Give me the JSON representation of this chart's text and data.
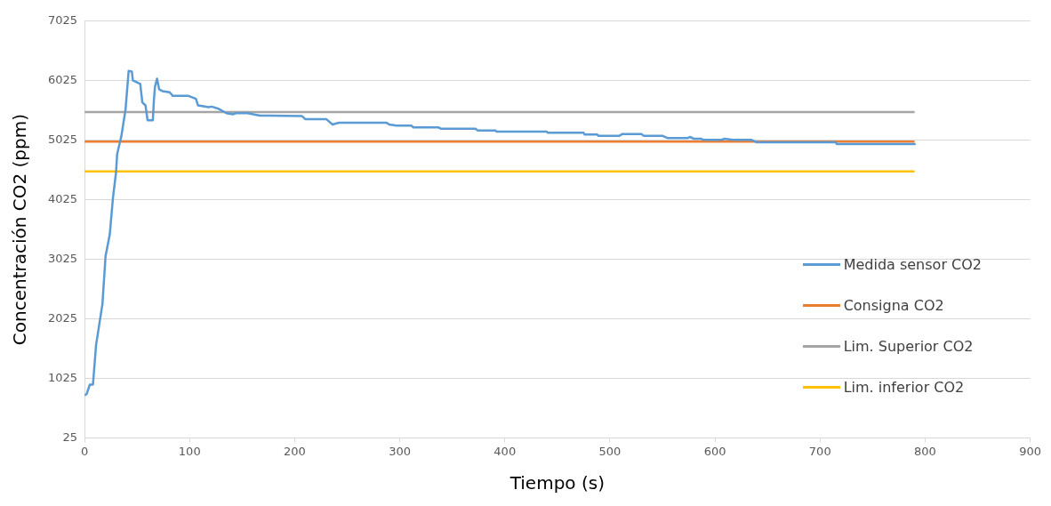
{
  "chart_data": {
    "type": "line",
    "xlabel": "Tiempo (s)",
    "ylabel": "Concentración CO2 (ppm)",
    "xlim": [
      0,
      900
    ],
    "xticks": [
      0,
      100,
      200,
      300,
      400,
      500,
      600,
      700,
      800,
      900
    ],
    "ylim": [
      25,
      7025
    ],
    "yticks": [
      25,
      1025,
      2025,
      3025,
      4025,
      5025,
      6025,
      7025
    ],
    "grid": "y",
    "legend": "right",
    "marker": "none",
    "line_style": "solid",
    "series": [
      {
        "name": "Medida sensor CO2",
        "color": "#5b9bd5",
        "x": [
          0,
          2,
          5,
          8,
          11,
          14,
          17,
          20,
          24,
          27,
          30,
          31,
          35,
          39,
          42,
          45,
          46,
          53,
          55,
          58,
          60,
          65,
          66,
          67,
          69,
          71,
          74,
          81,
          84,
          99,
          106,
          108,
          118,
          121,
          128,
          135,
          141,
          144,
          155,
          167,
          175,
          207,
          210,
          230,
          236,
          242,
          287,
          290,
          297,
          311,
          313,
          337,
          339,
          372,
          374,
          391,
          392,
          440,
          441,
          475,
          476,
          488,
          489,
          509,
          512,
          530,
          532,
          550,
          555,
          574,
          576,
          580,
          587,
          589,
          606,
          609,
          617,
          635,
          640,
          715,
          716,
          791
        ],
        "values": [
          740,
          760,
          920,
          920,
          1590,
          1930,
          2270,
          3080,
          3440,
          4050,
          4490,
          4790,
          5090,
          5540,
          6190,
          6180,
          6030,
          5970,
          5660,
          5610,
          5360,
          5360,
          5690,
          5920,
          6060,
          5880,
          5850,
          5830,
          5770,
          5770,
          5720,
          5610,
          5580,
          5590,
          5550,
          5480,
          5460,
          5480,
          5480,
          5440,
          5440,
          5430,
          5380,
          5380,
          5290,
          5320,
          5320,
          5290,
          5270,
          5270,
          5240,
          5240,
          5220,
          5220,
          5190,
          5190,
          5170,
          5170,
          5150,
          5150,
          5120,
          5120,
          5100,
          5100,
          5130,
          5130,
          5100,
          5100,
          5060,
          5060,
          5080,
          5050,
          5050,
          5030,
          5030,
          5050,
          5030,
          5030,
          4990,
          4990,
          4960,
          4960
        ]
      },
      {
        "name": "Consigna CO2",
        "color": "#ed7d31",
        "x": [
          0,
          790
        ],
        "values": [
          5000,
          5000
        ]
      },
      {
        "name": "Lim. Superior CO2",
        "color": "#a5a5a5",
        "x": [
          0,
          790
        ],
        "values": [
          5500,
          5500
        ]
      },
      {
        "name": "Lim. inferior CO2",
        "color": "#ffc000",
        "x": [
          0,
          790
        ],
        "values": [
          4500,
          4500
        ]
      }
    ]
  }
}
